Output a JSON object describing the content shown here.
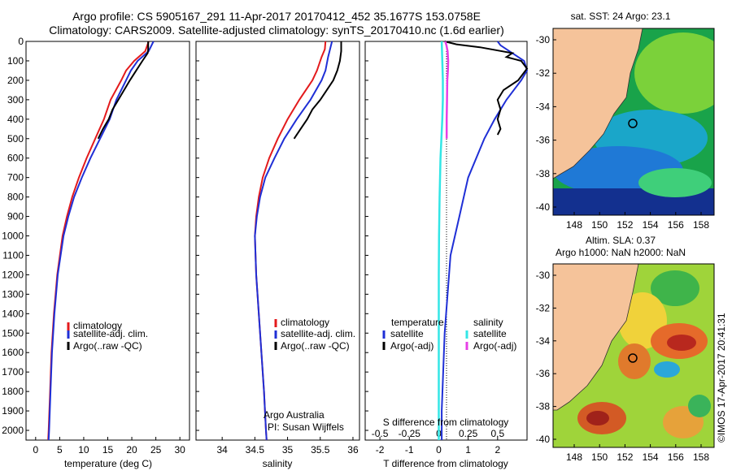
{
  "header": {
    "line1": "Argo profile: CS 5905167_291 11-Apr-2017 20170412_452 35.1677S 153.0758E",
    "line2": "Climatology: CARS2009. Satellite-adjusted climatology: synTS_20170410.nc (1.6d earlier)"
  },
  "depth_ticks": [
    "0",
    "100",
    "200",
    "300",
    "400",
    "500",
    "600",
    "700",
    "800",
    "900",
    "1000",
    "1100",
    "1200",
    "1300",
    "1400",
    "1500",
    "1600",
    "1700",
    "1800",
    "1900",
    "2000"
  ],
  "colors": {
    "clim": "#e31a1c",
    "sat": "#1f2fd6",
    "argo": "#000000",
    "sat_s": "#33e6e6",
    "argo_s": "#e640e6"
  },
  "chart_data": [
    {
      "type": "line",
      "name": "temperature_profile",
      "xlabel": "temperature (deg C)",
      "ylabel": "",
      "xlim": [
        -2,
        32
      ],
      "ylim": [
        2050,
        0
      ],
      "xticks": [
        "0",
        "5",
        "10",
        "15",
        "20",
        "25",
        "30"
      ],
      "legend": [
        "climatology",
        "satellite-adj. clim.",
        "Argo(..raw -QC)"
      ],
      "series": [
        {
          "name": "climatology",
          "depth": [
            0,
            50,
            100,
            150,
            200,
            300,
            400,
            500,
            600,
            700,
            800,
            900,
            1000,
            1200,
            1400,
            1600,
            1800,
            2000,
            2050
          ],
          "values": [
            23.5,
            22.8,
            20.5,
            18.8,
            17.8,
            15.6,
            14.2,
            12.4,
            10.6,
            9.0,
            7.6,
            6.5,
            5.6,
            4.5,
            3.8,
            3.3,
            3.0,
            2.7,
            2.6
          ]
        },
        {
          "name": "satellite-adj. clim.",
          "depth": [
            0,
            50,
            100,
            150,
            200,
            300,
            400,
            500,
            600,
            700,
            800,
            900,
            1000,
            1200,
            1400,
            1600,
            1800,
            2000,
            2050
          ],
          "values": [
            24.5,
            23.5,
            21.2,
            19.8,
            18.8,
            16.8,
            15.4,
            13.4,
            11.4,
            9.6,
            8.0,
            6.8,
            5.8,
            4.6,
            3.9,
            3.4,
            3.1,
            2.8,
            2.7
          ]
        },
        {
          "name": "Argo(..raw -QC)",
          "depth": [
            0,
            40,
            60,
            100,
            150,
            200,
            300,
            350,
            400,
            450,
            500
          ],
          "values": [
            23.4,
            23.4,
            23.3,
            22.2,
            20.9,
            19.6,
            17.2,
            16.0,
            15.2,
            14.0,
            13.0
          ]
        }
      ]
    },
    {
      "type": "line",
      "name": "salinity_profile",
      "xlabel": "salinity",
      "ylabel": "",
      "xlim": [
        33.6,
        36.1
      ],
      "ylim": [
        2050,
        0
      ],
      "xticks": [
        "34",
        "34.5",
        "35",
        "35.5",
        "36"
      ],
      "legend": [
        "climatology",
        "satellite-adj. clim.",
        "Argo(..raw -QC)"
      ],
      "series": [
        {
          "name": "climatology",
          "depth": [
            0,
            40,
            80,
            150,
            200,
            300,
            400,
            500,
            600,
            700,
            800,
            900,
            1000,
            1200,
            1400,
            1600,
            1800,
            2000,
            2050
          ],
          "values": [
            35.58,
            35.57,
            35.52,
            35.45,
            35.38,
            35.18,
            35.0,
            34.85,
            34.72,
            34.62,
            34.56,
            34.52,
            34.5,
            34.52,
            34.56,
            34.6,
            34.64,
            34.67,
            34.68
          ]
        },
        {
          "name": "satellite-adj. clim.",
          "depth": [
            0,
            40,
            80,
            150,
            200,
            300,
            400,
            500,
            600,
            700,
            800,
            900,
            1000,
            1200,
            1400,
            1600,
            1800,
            2000,
            2050
          ],
          "values": [
            35.68,
            35.65,
            35.62,
            35.58,
            35.52,
            35.35,
            35.14,
            34.95,
            34.8,
            34.66,
            34.58,
            34.53,
            34.5,
            34.52,
            34.56,
            34.6,
            34.64,
            34.67,
            34.68
          ]
        },
        {
          "name": "Argo(..raw -QC)",
          "depth": [
            0,
            50,
            100,
            150,
            200,
            250,
            300,
            350,
            400,
            450,
            500
          ],
          "values": [
            35.82,
            35.82,
            35.8,
            35.76,
            35.7,
            35.6,
            35.5,
            35.38,
            35.3,
            35.2,
            35.1
          ]
        }
      ]
    },
    {
      "type": "line",
      "name": "difference_profile",
      "xlabel": "T difference from climatology",
      "ylabel": "",
      "xlim": [
        -2.5,
        3.0
      ],
      "ylim": [
        2050,
        0
      ],
      "xticks": [
        "-2",
        "-1",
        "0",
        "1",
        "2"
      ],
      "x2label": "S difference from climatology",
      "x2ticks": [
        "-0.5",
        "-0.25",
        "0",
        "0.25",
        "0.5"
      ],
      "legend_left_title": "temperature",
      "legend_right_title": "salinity",
      "legend": [
        "satellite",
        "Argo(-adj)",
        "satellite",
        "Argo(-adj)"
      ],
      "series": [
        {
          "name": "satellite",
          "depth": [
            0,
            20,
            60,
            100,
            150,
            200,
            300,
            400,
            500,
            700,
            900,
            1100,
            1300,
            1500,
            1700,
            1900,
            2050
          ],
          "values": [
            2.0,
            2.1,
            2.5,
            2.9,
            3.0,
            2.8,
            2.3,
            1.9,
            1.55,
            1.0,
            0.7,
            0.4,
            0.3,
            0.2,
            0.15,
            0.1,
            0.1
          ]
        },
        {
          "name": "Argo(-adj)",
          "depth": [
            0,
            15,
            30,
            60,
            80,
            100,
            140,
            200,
            250,
            300,
            350,
            400,
            450,
            480
          ],
          "values": [
            0.2,
            0.6,
            1.4,
            2.5,
            2.3,
            2.8,
            3.0,
            2.7,
            2.2,
            2.0,
            2.1,
            2.0,
            2.1,
            2.0
          ]
        },
        {
          "name": "satellite",
          "depth": [
            0,
            100,
            200,
            300,
            400,
            500,
            600,
            800,
            1000,
            1200,
            1400,
            1600,
            1800,
            2050
          ],
          "values": [
            0.1,
            0.12,
            0.14,
            0.14,
            0.12,
            0.09,
            0.06,
            0.03,
            0.01,
            0.0,
            0.0,
            0.0,
            0.0,
            0.0
          ]
        },
        {
          "name": "Argo(-adj)",
          "depth": [
            0,
            20,
            50,
            100,
            150,
            200,
            300,
            400,
            500
          ],
          "values": [
            0.22,
            0.26,
            0.3,
            0.32,
            0.31,
            0.29,
            0.28,
            0.27,
            0.27
          ]
        }
      ]
    }
  ],
  "maps": {
    "sst": {
      "title": "sat. SST: 24 Argo: 23.1",
      "yticks": [
        "-30",
        "-32",
        "-34",
        "-36",
        "-38",
        "-40"
      ],
      "xticks": [
        "148",
        "150",
        "152",
        "154",
        "156",
        "158"
      ]
    },
    "sla": {
      "title1": "Altim. SLA: 0.37",
      "title2": "Argo h1000: NaN h2000: NaN",
      "yticks": [
        "-30",
        "-32",
        "-34",
        "-36",
        "-38",
        "-40"
      ],
      "xticks": [
        "148",
        "150",
        "152",
        "154",
        "156",
        "158"
      ]
    }
  },
  "credits": {
    "org": "Argo Australia",
    "pi": "PI: Susan Wijffels",
    "stamp": "©IMOS 17-Apr-2017 20:41:31"
  }
}
